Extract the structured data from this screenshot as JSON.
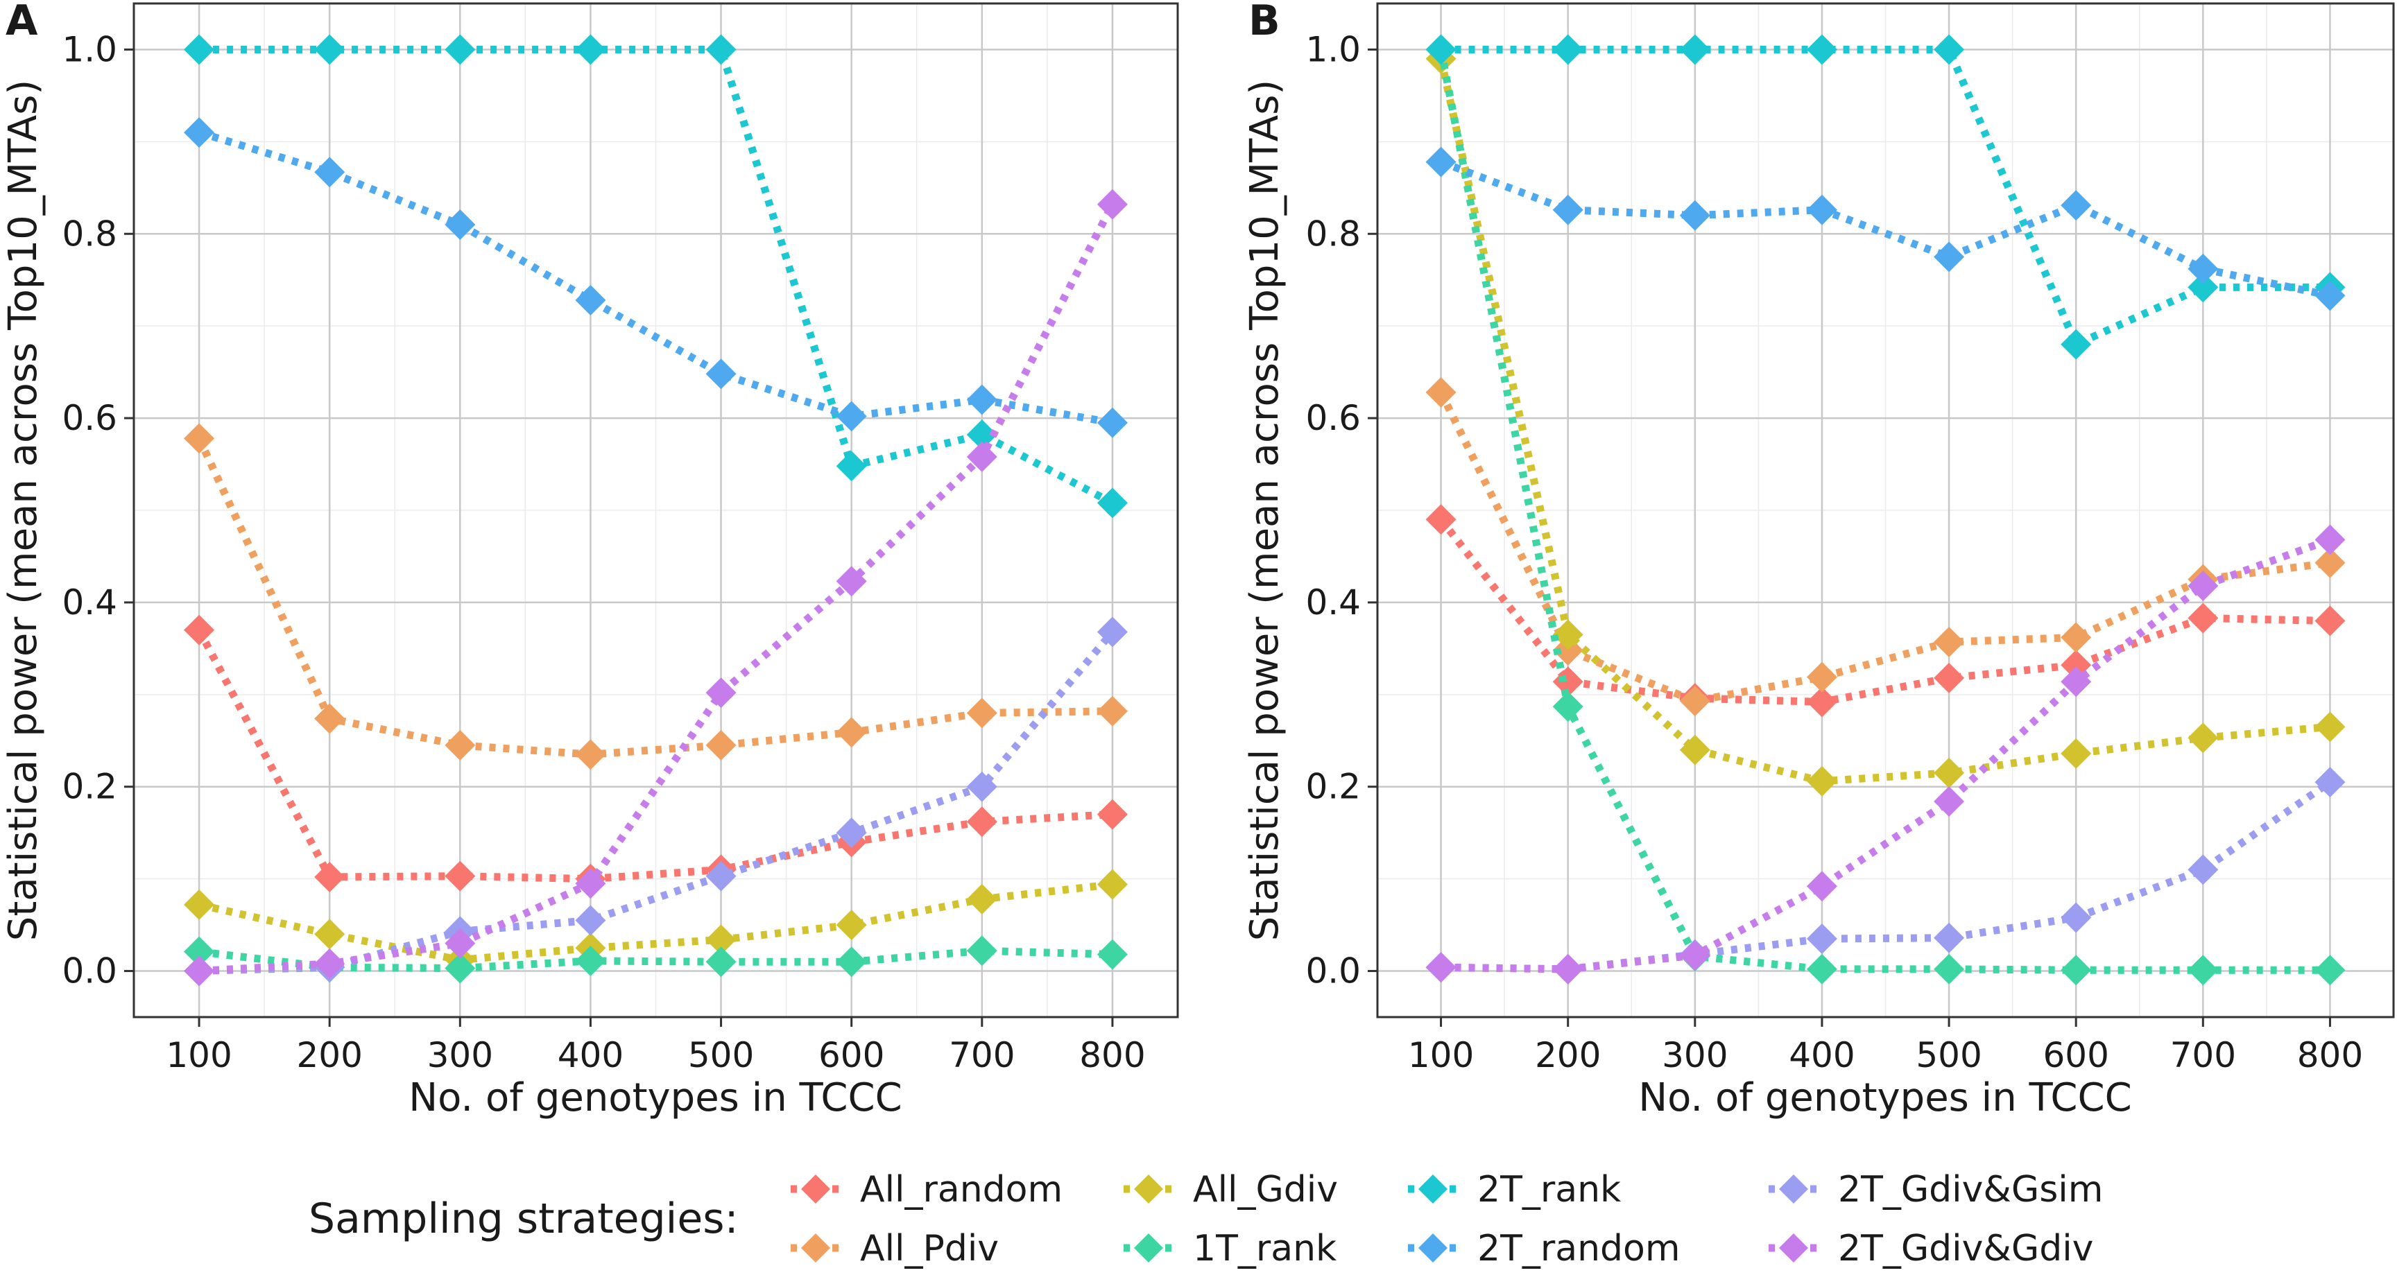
{
  "chart_data": {
    "type": "line",
    "legend_title": "Sampling strategies:",
    "legend_position": "bottom",
    "legend_items": [
      {
        "name": "All_random",
        "color": "#F8766D"
      },
      {
        "name": "All_Pdiv",
        "color": "#F0A05E"
      },
      {
        "name": "All_Gdiv",
        "color": "#D2C22E"
      },
      {
        "name": "1T_rank",
        "color": "#3DD5A1"
      },
      {
        "name": "2T_rank",
        "color": "#1BC8D2"
      },
      {
        "name": "2T_random",
        "color": "#4FA9EE"
      },
      {
        "name": "2T_Gdiv&Gsim",
        "color": "#9B9DF0"
      },
      {
        "name": "2T_Gdiv&Gdiv",
        "color": "#C77CEB"
      }
    ],
    "panels": [
      {
        "letter": "A",
        "xlabel": "No. of genotypes in TCCC",
        "ylabel": "Statistical power (mean across Top10_MTAs)",
        "x": [
          100,
          200,
          300,
          400,
          500,
          600,
          700,
          800
        ],
        "xticks": [
          "100",
          "200",
          "300",
          "400",
          "500",
          "600",
          "700",
          "800"
        ],
        "yticks": [
          "0.0",
          "0.2",
          "0.4",
          "0.6",
          "0.8",
          "1.0"
        ],
        "xlim": [
          50,
          850
        ],
        "ylim": [
          -0.05,
          1.05
        ],
        "grid": true,
        "series": [
          {
            "name": "All_random",
            "values": [
              0.37,
              0.102,
              0.103,
              0.1,
              0.11,
              0.14,
              0.162,
              0.17
            ]
          },
          {
            "name": "All_Pdiv",
            "values": [
              0.578,
              0.274,
              0.245,
              0.235,
              0.245,
              0.259,
              0.28,
              0.282
            ]
          },
          {
            "name": "All_Gdiv",
            "values": [
              0.072,
              0.04,
              0.012,
              0.025,
              0.034,
              0.05,
              0.078,
              0.094
            ]
          },
          {
            "name": "1T_rank",
            "values": [
              0.021,
              0.004,
              0.003,
              0.011,
              0.01,
              0.01,
              0.022,
              0.018
            ]
          },
          {
            "name": "2T_rank",
            "values": [
              1.0,
              1.0,
              1.0,
              1.0,
              1.0,
              0.548,
              0.582,
              0.508
            ]
          },
          {
            "name": "2T_random",
            "values": [
              0.91,
              0.867,
              0.81,
              0.728,
              0.648,
              0.602,
              0.62,
              0.595
            ]
          },
          {
            "name": "2T_Gdiv&Gsim",
            "values": [
              0.0,
              0.004,
              0.043,
              0.055,
              0.103,
              0.15,
              0.2,
              0.368
            ]
          },
          {
            "name": "2T_Gdiv&Gdiv",
            "values": [
              0.0,
              0.008,
              0.03,
              0.095,
              0.302,
              0.423,
              0.558,
              0.832
            ]
          }
        ]
      },
      {
        "letter": "B",
        "xlabel": "No. of genotypes in TCCC",
        "ylabel": "Statistical power (mean across Top10_MTAs)",
        "x": [
          100,
          200,
          300,
          400,
          500,
          600,
          700,
          800
        ],
        "xticks": [
          "100",
          "200",
          "300",
          "400",
          "500",
          "600",
          "700",
          "800"
        ],
        "yticks": [
          "0.0",
          "0.2",
          "0.4",
          "0.6",
          "0.8",
          "1.0"
        ],
        "xlim": [
          50,
          850
        ],
        "ylim": [
          -0.05,
          1.05
        ],
        "grid": true,
        "series": [
          {
            "name": "All_random",
            "values": [
              0.49,
              0.314,
              0.296,
              0.292,
              0.318,
              0.332,
              0.383,
              0.38
            ]
          },
          {
            "name": "All_Pdiv",
            "values": [
              0.628,
              0.348,
              0.293,
              0.319,
              0.357,
              0.362,
              0.425,
              0.443
            ]
          },
          {
            "name": "All_Gdiv",
            "values": [
              0.99,
              0.365,
              0.24,
              0.206,
              0.215,
              0.236,
              0.253,
              0.265
            ]
          },
          {
            "name": "1T_rank",
            "values": [
              1.0,
              0.287,
              0.016,
              0.002,
              0.002,
              0.001,
              0.001,
              0.001
            ]
          },
          {
            "name": "2T_rank",
            "values": [
              1.0,
              1.0,
              1.0,
              1.0,
              1.0,
              0.68,
              0.742,
              0.742
            ]
          },
          {
            "name": "2T_random",
            "values": [
              0.878,
              0.826,
              0.82,
              0.826,
              0.775,
              0.831,
              0.762,
              0.733
            ]
          },
          {
            "name": "2T_Gdiv&Gsim",
            "values": [
              0.004,
              0.002,
              0.018,
              0.035,
              0.036,
              0.058,
              0.11,
              0.205
            ]
          },
          {
            "name": "2T_Gdiv&Gdiv",
            "values": [
              0.004,
              0.002,
              0.017,
              0.092,
              0.184,
              0.314,
              0.418,
              0.468
            ]
          }
        ]
      }
    ]
  }
}
